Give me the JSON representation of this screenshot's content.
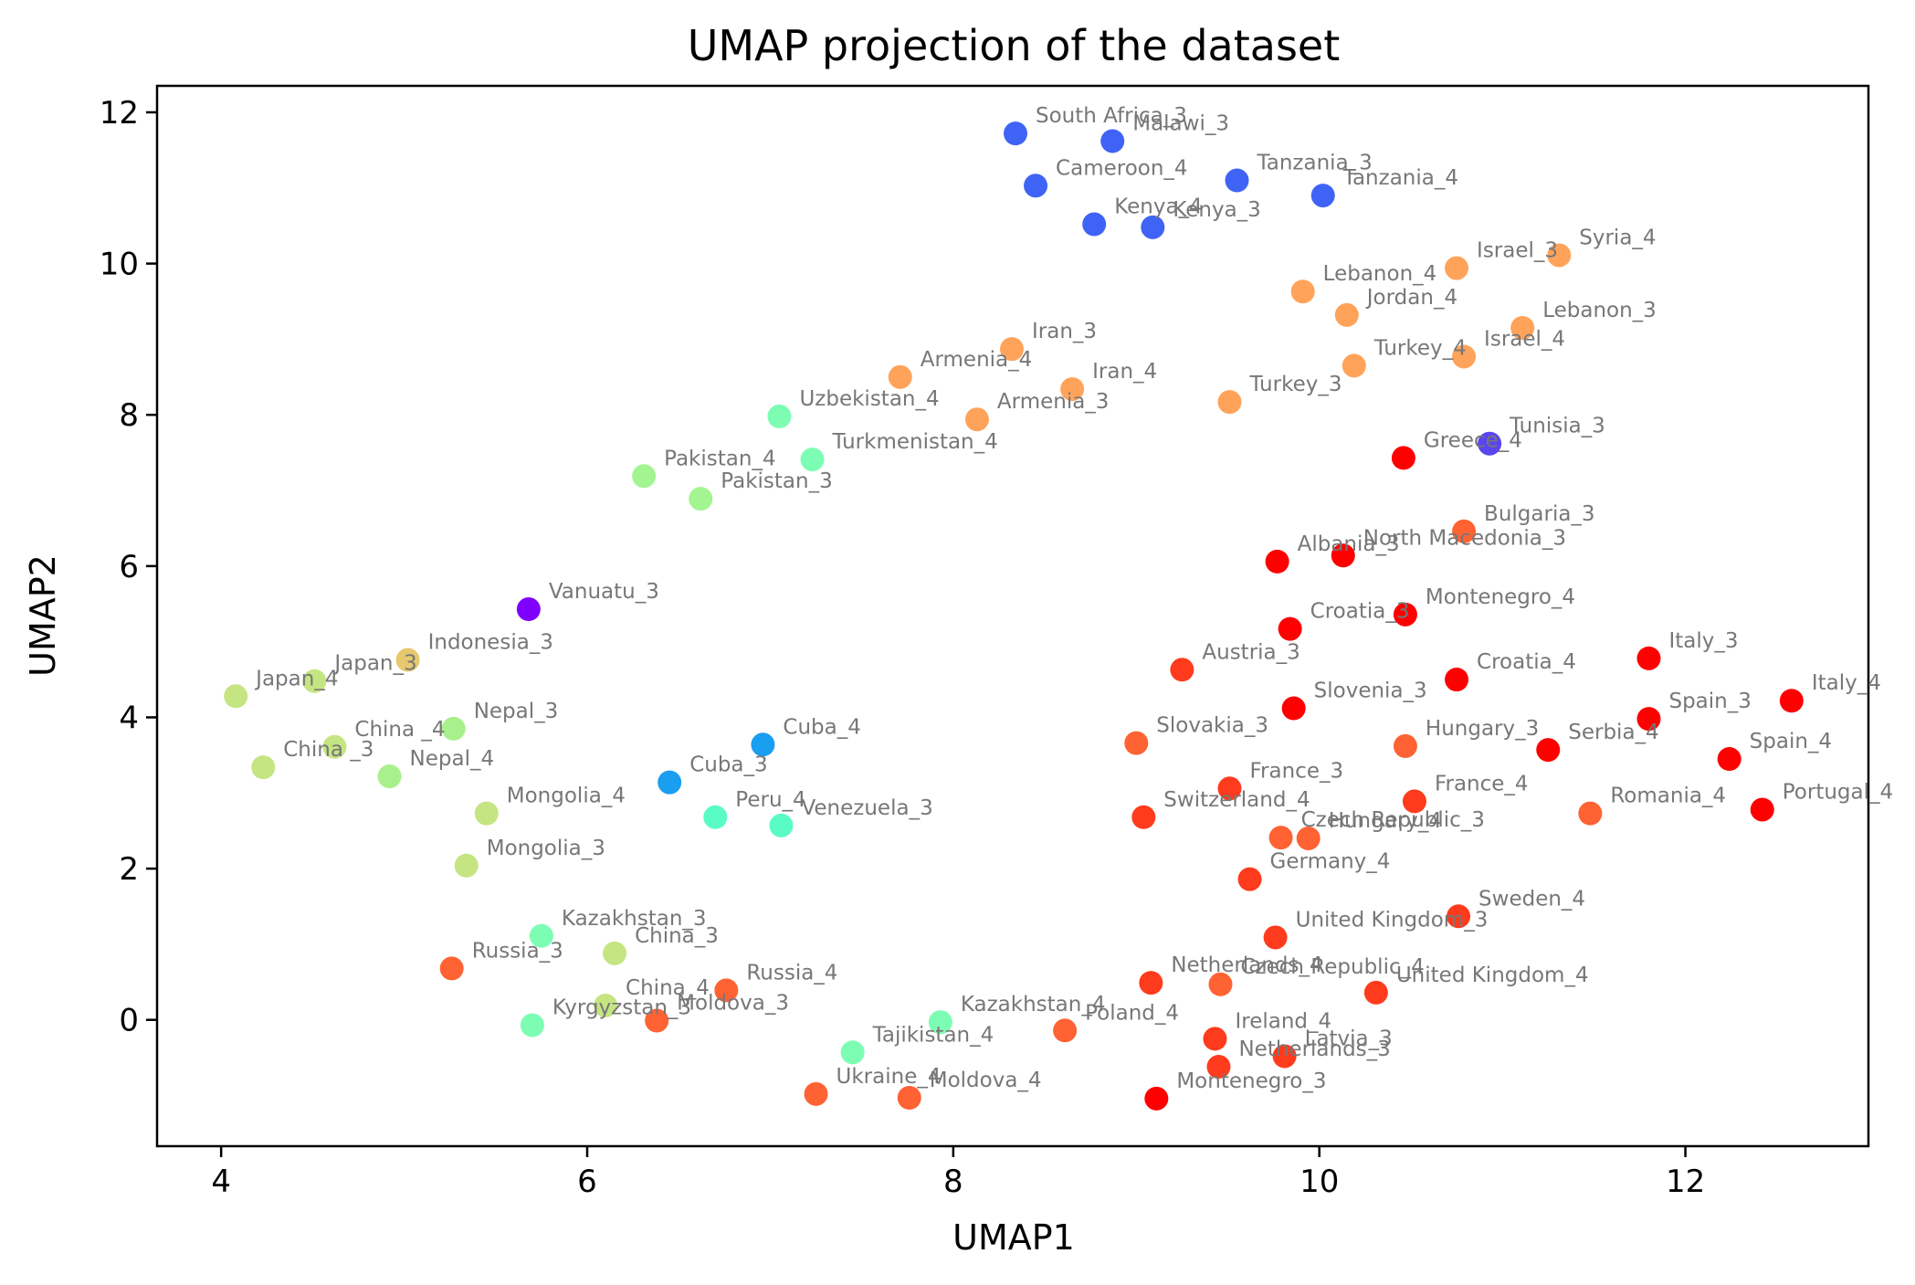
{
  "chart_data": {
    "type": "scatter",
    "title": "UMAP projection of the dataset",
    "xlabel": "UMAP1",
    "ylabel": "UMAP2",
    "xlim": [
      3.65,
      13.0
    ],
    "ylim": [
      -1.67,
      12.35
    ],
    "xticks": [
      4,
      6,
      8,
      10,
      12
    ],
    "yticks": [
      0,
      2,
      4,
      6,
      8,
      10,
      12
    ],
    "grid": false,
    "legend": "none",
    "points": [
      {
        "label": "South Africa_3",
        "x": 8.34,
        "y": 11.72,
        "color": "#3f63f5"
      },
      {
        "label": "Malawi_3",
        "x": 8.87,
        "y": 11.62,
        "color": "#3f63f5"
      },
      {
        "label": "Cameroon_4",
        "x": 8.45,
        "y": 11.03,
        "color": "#3f63f5"
      },
      {
        "label": "Tanzania_3",
        "x": 9.55,
        "y": 11.1,
        "color": "#3f63f5"
      },
      {
        "label": "Tanzania_4",
        "x": 10.02,
        "y": 10.9,
        "color": "#3f63f5"
      },
      {
        "label": "Kenya_4",
        "x": 8.77,
        "y": 10.52,
        "color": "#3f63f5"
      },
      {
        "label": "Kenya_3",
        "x": 9.09,
        "y": 10.48,
        "color": "#3f63f5"
      },
      {
        "label": "Syria_4",
        "x": 11.31,
        "y": 10.11,
        "color": "#ffa35a"
      },
      {
        "label": "Israel_3",
        "x": 10.75,
        "y": 9.94,
        "color": "#ffa35a"
      },
      {
        "label": "Lebanon_4",
        "x": 9.91,
        "y": 9.63,
        "color": "#ffa35a"
      },
      {
        "label": "Jordan_4",
        "x": 10.15,
        "y": 9.32,
        "color": "#ffa35a"
      },
      {
        "label": "Lebanon_3",
        "x": 11.11,
        "y": 9.15,
        "color": "#ffa35a"
      },
      {
        "label": "Israel_4",
        "x": 10.79,
        "y": 8.77,
        "color": "#ffa35a"
      },
      {
        "label": "Turkey_4",
        "x": 10.19,
        "y": 8.65,
        "color": "#ffa35a"
      },
      {
        "label": "Turkey_3",
        "x": 9.51,
        "y": 8.17,
        "color": "#ffa35a"
      },
      {
        "label": "Iran_3",
        "x": 8.32,
        "y": 8.87,
        "color": "#ffa35a"
      },
      {
        "label": "Iran_4",
        "x": 8.65,
        "y": 8.34,
        "color": "#ffa35a"
      },
      {
        "label": "Armenia_4",
        "x": 7.71,
        "y": 8.5,
        "color": "#ffa35a"
      },
      {
        "label": "Armenia_3",
        "x": 8.13,
        "y": 7.94,
        "color": "#ffa35a"
      },
      {
        "label": "Uzbekistan_4",
        "x": 7.05,
        "y": 7.98,
        "color": "#7dfdb3"
      },
      {
        "label": "Turkmenistan_4",
        "x": 7.23,
        "y": 7.41,
        "color": "#7dfdb3"
      },
      {
        "label": "Pakistan_4",
        "x": 6.31,
        "y": 7.19,
        "color": "#a2f590"
      },
      {
        "label": "Pakistan_3",
        "x": 6.62,
        "y": 6.89,
        "color": "#a2f590"
      },
      {
        "label": "Tunisia_3",
        "x": 10.93,
        "y": 7.62,
        "color": "#5a45f0"
      },
      {
        "label": "Greece_4",
        "x": 10.46,
        "y": 7.43,
        "color": "#ff0000"
      },
      {
        "label": "Bulgaria_3",
        "x": 10.79,
        "y": 6.46,
        "color": "#ff6233"
      },
      {
        "label": "North Macedonia_3",
        "x": 10.13,
        "y": 6.14,
        "color": "#ff0000"
      },
      {
        "label": "Albania_3",
        "x": 9.77,
        "y": 6.06,
        "color": "#ff0000"
      },
      {
        "label": "Montenegro_4",
        "x": 10.47,
        "y": 5.36,
        "color": "#ff0000"
      },
      {
        "label": "Croatia_3",
        "x": 9.84,
        "y": 5.17,
        "color": "#ff0000"
      },
      {
        "label": "Vanuatu_3",
        "x": 5.68,
        "y": 5.43,
        "color": "#8000ff"
      },
      {
        "label": "Indonesia_3",
        "x": 5.02,
        "y": 4.76,
        "color": "#e6c86e"
      },
      {
        "label": "Japan_3",
        "x": 4.51,
        "y": 4.48,
        "color": "#c5e582"
      },
      {
        "label": "Japan_4",
        "x": 4.08,
        "y": 4.28,
        "color": "#c5e582"
      },
      {
        "label": "Nepal_3",
        "x": 5.27,
        "y": 3.85,
        "color": "#a8f08c"
      },
      {
        "label": "China _4",
        "x": 4.62,
        "y": 3.61,
        "color": "#c5e582"
      },
      {
        "label": "China _3",
        "x": 4.23,
        "y": 3.34,
        "color": "#c5e582"
      },
      {
        "label": "Nepal_4",
        "x": 4.92,
        "y": 3.22,
        "color": "#a8f08c"
      },
      {
        "label": "Cuba_4",
        "x": 6.96,
        "y": 3.64,
        "color": "#199ef0"
      },
      {
        "label": "Cuba_3",
        "x": 6.45,
        "y": 3.14,
        "color": "#199ef0"
      },
      {
        "label": "Peru_4",
        "x": 6.7,
        "y": 2.68,
        "color": "#5afcc5"
      },
      {
        "label": "Venezuela_3",
        "x": 7.06,
        "y": 2.57,
        "color": "#5afcc5"
      },
      {
        "label": "Mongolia_4",
        "x": 5.45,
        "y": 2.73,
        "color": "#c5e582"
      },
      {
        "label": "Mongolia_3",
        "x": 5.34,
        "y": 2.04,
        "color": "#c5e582"
      },
      {
        "label": "Austria_3",
        "x": 9.25,
        "y": 4.63,
        "color": "#ff3b1d"
      },
      {
        "label": "Croatia_4",
        "x": 10.75,
        "y": 4.5,
        "color": "#ff0000"
      },
      {
        "label": "Italy_3",
        "x": 11.8,
        "y": 4.78,
        "color": "#ff0000"
      },
      {
        "label": "Italy_4",
        "x": 12.58,
        "y": 4.22,
        "color": "#ff0000"
      },
      {
        "label": "Slovenia_3",
        "x": 9.86,
        "y": 4.12,
        "color": "#ff0000"
      },
      {
        "label": "Spain_3",
        "x": 11.8,
        "y": 3.98,
        "color": "#ff0000"
      },
      {
        "label": "Slovakia_3",
        "x": 9.0,
        "y": 3.66,
        "color": "#ff6233"
      },
      {
        "label": "Hungary_3",
        "x": 10.47,
        "y": 3.62,
        "color": "#ff6233"
      },
      {
        "label": "Serbia_4",
        "x": 11.25,
        "y": 3.57,
        "color": "#ff0000"
      },
      {
        "label": "Spain_4",
        "x": 12.24,
        "y": 3.45,
        "color": "#ff0000"
      },
      {
        "label": "France_3",
        "x": 9.51,
        "y": 3.06,
        "color": "#ff3b1d"
      },
      {
        "label": "France_4",
        "x": 10.52,
        "y": 2.89,
        "color": "#ff3b1d"
      },
      {
        "label": "Portugal_4",
        "x": 12.42,
        "y": 2.78,
        "color": "#ff0000"
      },
      {
        "label": "Romania_4",
        "x": 11.48,
        "y": 2.73,
        "color": "#ff6233"
      },
      {
        "label": "Switzerland_4",
        "x": 9.04,
        "y": 2.68,
        "color": "#ff3b1d"
      },
      {
        "label": "Czech Republic_3",
        "x": 9.79,
        "y": 2.41,
        "color": "#ff6233"
      },
      {
        "label": "Hungary_4",
        "x": 9.94,
        "y": 2.4,
        "color": "#ff6233"
      },
      {
        "label": "Germany_4",
        "x": 9.62,
        "y": 1.86,
        "color": "#ff3b1d"
      },
      {
        "label": "Sweden_4",
        "x": 10.76,
        "y": 1.37,
        "color": "#ff3b1d"
      },
      {
        "label": "United Kingdom_3",
        "x": 9.76,
        "y": 1.09,
        "color": "#ff3b1d"
      },
      {
        "label": "Netherlands_4",
        "x": 9.08,
        "y": 0.49,
        "color": "#ff3b1d"
      },
      {
        "label": "Czech Republic_4",
        "x": 9.46,
        "y": 0.47,
        "color": "#ff6233"
      },
      {
        "label": "United Kingdom_4",
        "x": 10.31,
        "y": 0.36,
        "color": "#ff3b1d"
      },
      {
        "label": "Ireland_4",
        "x": 9.43,
        "y": -0.25,
        "color": "#ff3b1d"
      },
      {
        "label": "Latvia_3",
        "x": 9.81,
        "y": -0.48,
        "color": "#ff3b1d"
      },
      {
        "label": "Netherlands_3",
        "x": 9.45,
        "y": -0.62,
        "color": "#ff3b1d"
      },
      {
        "label": "Montenegro_3",
        "x": 9.11,
        "y": -1.04,
        "color": "#ff0000"
      },
      {
        "label": "Poland_4",
        "x": 8.61,
        "y": -0.14,
        "color": "#ff6233"
      },
      {
        "label": "Kazakhstan_4",
        "x": 7.93,
        "y": -0.03,
        "color": "#7dfdb3"
      },
      {
        "label": "Tajikistan_4",
        "x": 7.45,
        "y": -0.43,
        "color": "#7dfdb3"
      },
      {
        "label": "Ukraine_4",
        "x": 7.25,
        "y": -0.98,
        "color": "#ff6233"
      },
      {
        "label": "Moldova_4",
        "x": 7.76,
        "y": -1.03,
        "color": "#ff6233"
      },
      {
        "label": "Kazakhstan_3",
        "x": 5.75,
        "y": 1.11,
        "color": "#7dfdb3"
      },
      {
        "label": "China_3",
        "x": 6.15,
        "y": 0.88,
        "color": "#c5e582"
      },
      {
        "label": "Russia_3",
        "x": 5.26,
        "y": 0.68,
        "color": "#ff6233"
      },
      {
        "label": "Russia_4",
        "x": 6.76,
        "y": 0.39,
        "color": "#ff6233"
      },
      {
        "label": "China_4",
        "x": 6.1,
        "y": 0.19,
        "color": "#c5e582"
      },
      {
        "label": "Moldova_3",
        "x": 6.38,
        "y": -0.01,
        "color": "#ff6233"
      },
      {
        "label": "Kyrgyzstan_3",
        "x": 5.7,
        "y": -0.07,
        "color": "#7dfdb3"
      }
    ]
  }
}
